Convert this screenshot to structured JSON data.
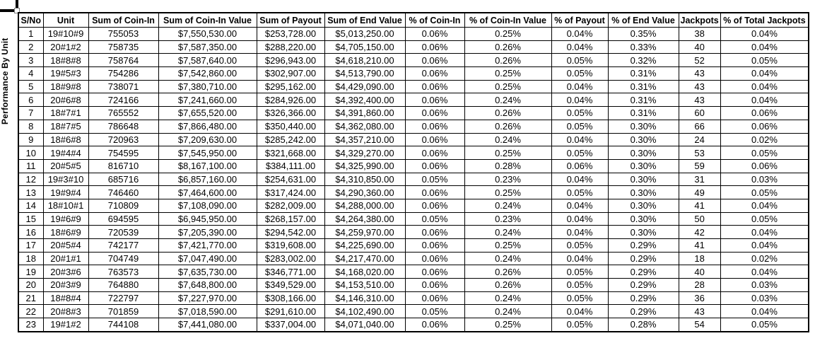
{
  "page": {
    "vertical_label": "Performance By Unit"
  },
  "colors": {
    "background": "#ffffff",
    "border": "#000000",
    "text": "#000000"
  },
  "table": {
    "columns": [
      "S/No",
      "Unit",
      "Sum of Coin-In",
      "Sum of Coin-In Value",
      "Sum of Payout",
      "Sum of End Value",
      "% of Coin-In",
      "% of Coin-In Value",
      "% of Payout",
      "% of End Value",
      "Jackpots",
      "% of Total Jackpots"
    ],
    "rows": [
      [
        "1",
        "19#10#9",
        "755053",
        "$7,550,530.00",
        "$253,728.00",
        "$5,013,250.00",
        "0.06%",
        "0.25%",
        "0.04%",
        "0.35%",
        "38",
        "0.04%"
      ],
      [
        "2",
        "20#1#2",
        "758735",
        "$7,587,350.00",
        "$288,220.00",
        "$4,705,150.00",
        "0.06%",
        "0.26%",
        "0.04%",
        "0.33%",
        "40",
        "0.04%"
      ],
      [
        "3",
        "18#8#8",
        "758764",
        "$7,587,640.00",
        "$296,943.00",
        "$4,618,210.00",
        "0.06%",
        "0.26%",
        "0.05%",
        "0.32%",
        "52",
        "0.05%"
      ],
      [
        "4",
        "19#5#3",
        "754286",
        "$7,542,860.00",
        "$302,907.00",
        "$4,513,790.00",
        "0.06%",
        "0.25%",
        "0.05%",
        "0.31%",
        "43",
        "0.04%"
      ],
      [
        "5",
        "18#9#8",
        "738071",
        "$7,380,710.00",
        "$295,162.00",
        "$4,429,090.00",
        "0.06%",
        "0.25%",
        "0.04%",
        "0.31%",
        "43",
        "0.04%"
      ],
      [
        "6",
        "20#6#8",
        "724166",
        "$7,241,660.00",
        "$284,926.00",
        "$4,392,400.00",
        "0.06%",
        "0.24%",
        "0.04%",
        "0.31%",
        "43",
        "0.04%"
      ],
      [
        "7",
        "18#7#1",
        "765552",
        "$7,655,520.00",
        "$326,366.00",
        "$4,391,860.00",
        "0.06%",
        "0.26%",
        "0.05%",
        "0.31%",
        "60",
        "0.06%"
      ],
      [
        "8",
        "18#7#5",
        "786648",
        "$7,866,480.00",
        "$350,440.00",
        "$4,362,080.00",
        "0.06%",
        "0.26%",
        "0.05%",
        "0.30%",
        "66",
        "0.06%"
      ],
      [
        "9",
        "18#6#8",
        "720963",
        "$7,209,630.00",
        "$285,242.00",
        "$4,357,210.00",
        "0.06%",
        "0.24%",
        "0.04%",
        "0.30%",
        "24",
        "0.02%"
      ],
      [
        "10",
        "19#4#4",
        "754595",
        "$7,545,950.00",
        "$321,668.00",
        "$4,329,270.00",
        "0.06%",
        "0.25%",
        "0.05%",
        "0.30%",
        "53",
        "0.05%"
      ],
      [
        "11",
        "20#5#5",
        "816710",
        "$8,167,100.00",
        "$384,111.00",
        "$4,325,990.00",
        "0.06%",
        "0.28%",
        "0.06%",
        "0.30%",
        "59",
        "0.06%"
      ],
      [
        "12",
        "19#3#10",
        "685716",
        "$6,857,160.00",
        "$254,631.00",
        "$4,310,850.00",
        "0.05%",
        "0.23%",
        "0.04%",
        "0.30%",
        "31",
        "0.03%"
      ],
      [
        "13",
        "19#9#4",
        "746460",
        "$7,464,600.00",
        "$317,424.00",
        "$4,290,360.00",
        "0.06%",
        "0.25%",
        "0.05%",
        "0.30%",
        "49",
        "0.05%"
      ],
      [
        "14",
        "18#10#1",
        "710809",
        "$7,108,090.00",
        "$282,009.00",
        "$4,288,000.00",
        "0.06%",
        "0.24%",
        "0.04%",
        "0.30%",
        "41",
        "0.04%"
      ],
      [
        "15",
        "19#6#9",
        "694595",
        "$6,945,950.00",
        "$268,157.00",
        "$4,264,380.00",
        "0.05%",
        "0.23%",
        "0.04%",
        "0.30%",
        "50",
        "0.05%"
      ],
      [
        "16",
        "18#6#9",
        "720539",
        "$7,205,390.00",
        "$294,542.00",
        "$4,259,970.00",
        "0.06%",
        "0.24%",
        "0.04%",
        "0.30%",
        "42",
        "0.04%"
      ],
      [
        "17",
        "20#5#4",
        "742177",
        "$7,421,770.00",
        "$319,608.00",
        "$4,225,690.00",
        "0.06%",
        "0.25%",
        "0.05%",
        "0.29%",
        "41",
        "0.04%"
      ],
      [
        "18",
        "20#1#1",
        "704749",
        "$7,047,490.00",
        "$283,002.00",
        "$4,217,470.00",
        "0.06%",
        "0.24%",
        "0.04%",
        "0.29%",
        "18",
        "0.02%"
      ],
      [
        "19",
        "20#3#6",
        "763573",
        "$7,635,730.00",
        "$346,771.00",
        "$4,168,020.00",
        "0.06%",
        "0.26%",
        "0.05%",
        "0.29%",
        "40",
        "0.04%"
      ],
      [
        "20",
        "20#3#9",
        "764880",
        "$7,648,800.00",
        "$349,529.00",
        "$4,153,510.00",
        "0.06%",
        "0.26%",
        "0.05%",
        "0.29%",
        "28",
        "0.03%"
      ],
      [
        "21",
        "18#8#4",
        "722797",
        "$7,227,970.00",
        "$308,166.00",
        "$4,146,310.00",
        "0.06%",
        "0.24%",
        "0.05%",
        "0.29%",
        "36",
        "0.03%"
      ],
      [
        "22",
        "20#8#3",
        "701859",
        "$7,018,590.00",
        "$291,610.00",
        "$4,102,490.00",
        "0.05%",
        "0.24%",
        "0.04%",
        "0.29%",
        "43",
        "0.04%"
      ],
      [
        "23",
        "19#1#2",
        "744108",
        "$7,441,080.00",
        "$337,004.00",
        "$4,071,040.00",
        "0.06%",
        "0.25%",
        "0.05%",
        "0.28%",
        "54",
        "0.05%"
      ]
    ]
  }
}
